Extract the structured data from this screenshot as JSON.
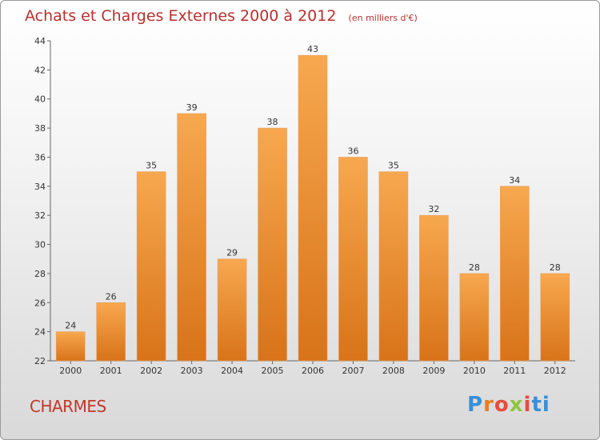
{
  "header": {
    "title": "Achats et Charges Externes 2000 à 2012",
    "subtitle": "(en milliers d'€)"
  },
  "footer": {
    "town": "CHARMES",
    "logo": "Proxiti"
  },
  "colors": {
    "bar_top": "#f7a84f",
    "bar_bottom": "#d87319",
    "title": "#b8302e"
  },
  "chart_data": {
    "type": "bar",
    "title": "Achats et Charges Externes 2000 à 2012",
    "subtitle": "(en milliers d'€)",
    "categories": [
      "2000",
      "2001",
      "2002",
      "2003",
      "2004",
      "2005",
      "2006",
      "2007",
      "2008",
      "2009",
      "2010",
      "2011",
      "2012"
    ],
    "values": [
      24,
      26,
      35,
      39,
      29,
      38,
      43,
      36,
      35,
      32,
      28,
      34,
      28
    ],
    "ylim": [
      22,
      44
    ],
    "yticks": [
      22,
      24,
      26,
      28,
      30,
      32,
      34,
      36,
      38,
      40,
      42,
      44
    ],
    "xlabel": "",
    "ylabel": "",
    "grid": false
  }
}
